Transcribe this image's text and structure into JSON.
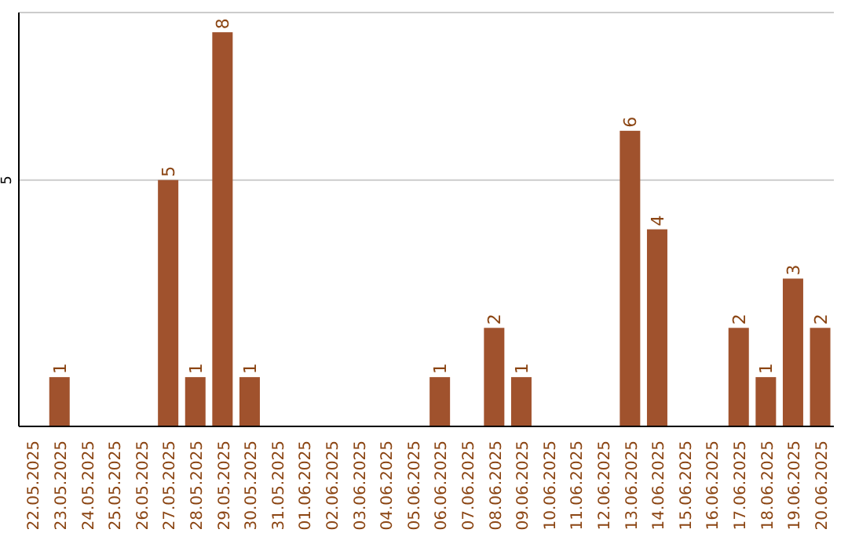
{
  "chart_data": {
    "type": "bar",
    "categories": [
      "22.05.2025",
      "23.05.2025",
      "24.05.2025",
      "25.05.2025",
      "26.05.2025",
      "27.05.2025",
      "28.05.2025",
      "29.05.2025",
      "30.05.2025",
      "31.05.2025",
      "01.06.2025",
      "02.06.2025",
      "03.06.2025",
      "04.06.2025",
      "05.06.2025",
      "06.06.2025",
      "07.06.2025",
      "08.06.2025",
      "09.06.2025",
      "10.06.2025",
      "11.06.2025",
      "12.06.2025",
      "13.06.2025",
      "14.06.2025",
      "15.06.2025",
      "16.06.2025",
      "17.06.2025",
      "18.06.2025",
      "19.06.2025",
      "20.06.2025"
    ],
    "values": [
      0,
      1,
      0,
      0,
      0,
      5,
      1,
      8,
      1,
      0,
      0,
      0,
      0,
      0,
      0,
      1,
      0,
      2,
      1,
      0,
      0,
      0,
      6,
      4,
      0,
      0,
      2,
      1,
      3,
      2
    ],
    "value_labels": [
      null,
      "1",
      null,
      null,
      null,
      "5",
      "1",
      "8",
      "1",
      null,
      null,
      null,
      null,
      null,
      null,
      "1",
      null,
      "2",
      "1",
      null,
      null,
      null,
      "6",
      "4",
      null,
      null,
      "2",
      "1",
      "3",
      "2"
    ],
    "color": "#a0522d",
    "ylim": [
      0,
      8.4
    ],
    "yticks": [
      5
    ],
    "grid": "y"
  }
}
